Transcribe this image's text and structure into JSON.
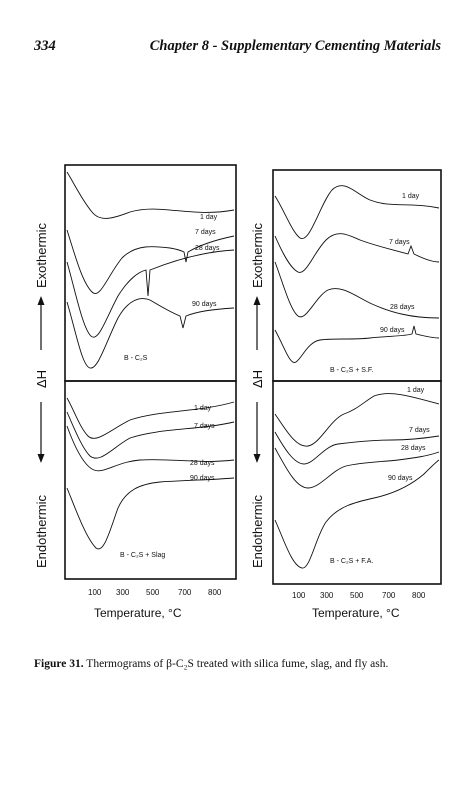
{
  "header": {
    "page_number": "334",
    "chapter_title": "Chapter 8 - Supplementary Cementing Materials"
  },
  "figure": {
    "caption_label": "Figure 31.",
    "caption_text": "Thermograms of β-C₂S treated with silica fume, slag, and fly ash.",
    "left": {
      "side_label_top": "Exothermic",
      "side_label_mid": "ΔH",
      "side_label_bottom": "Endothermic",
      "x_axis_label": "Temperature, °C",
      "x_ticks": [
        "100",
        "300",
        "500",
        "700",
        "800"
      ],
      "top_panel": {
        "sample_label": "B - C₂S",
        "curve_labels": [
          "1 day",
          "7 days",
          "28 days",
          "90 days"
        ]
      },
      "bottom_panel": {
        "sample_label": "B - C₂S + Slag",
        "curve_labels": [
          "1 day",
          "7 days",
          "28 days",
          "90 days"
        ]
      }
    },
    "right": {
      "side_label_top": "Exothermic",
      "side_label_mid": "ΔH",
      "side_label_bottom": "Endothermic",
      "x_axis_label": "Temperature, °C",
      "x_ticks": [
        "100",
        "300",
        "500",
        "700",
        "800"
      ],
      "top_panel": {
        "sample_label": "B - C₂S + S.F.",
        "curve_labels": [
          "1 day",
          "7 days",
          "28 days",
          "90 days"
        ]
      },
      "bottom_panel": {
        "sample_label": "B - C₂S + F.A.",
        "curve_labels": [
          "1 day",
          "7 days",
          "28 days",
          "90 days"
        ]
      }
    }
  }
}
